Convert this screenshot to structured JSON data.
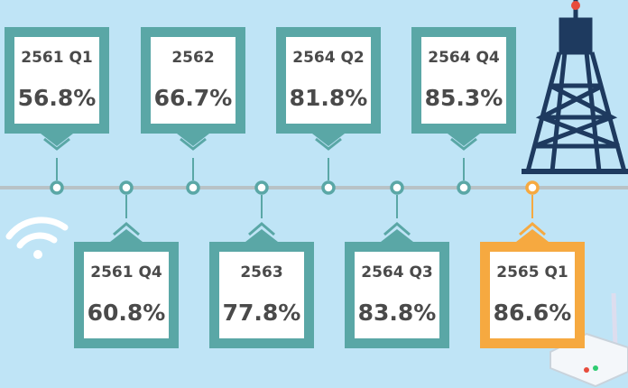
{
  "timeline": {
    "items": [
      {
        "period": "2561 Q1",
        "value": "56.8%"
      },
      {
        "period": "2561 Q4",
        "value": "60.8%"
      },
      {
        "period": "2562",
        "value": "66.7%"
      },
      {
        "period": "2563",
        "value": "77.8%"
      },
      {
        "period": "2564 Q2",
        "value": "81.8%"
      },
      {
        "period": "2564 Q3",
        "value": "83.8%"
      },
      {
        "period": "2564 Q4",
        "value": "85.3%"
      },
      {
        "period": "2565 Q1",
        "value": "86.6%"
      }
    ]
  }
}
